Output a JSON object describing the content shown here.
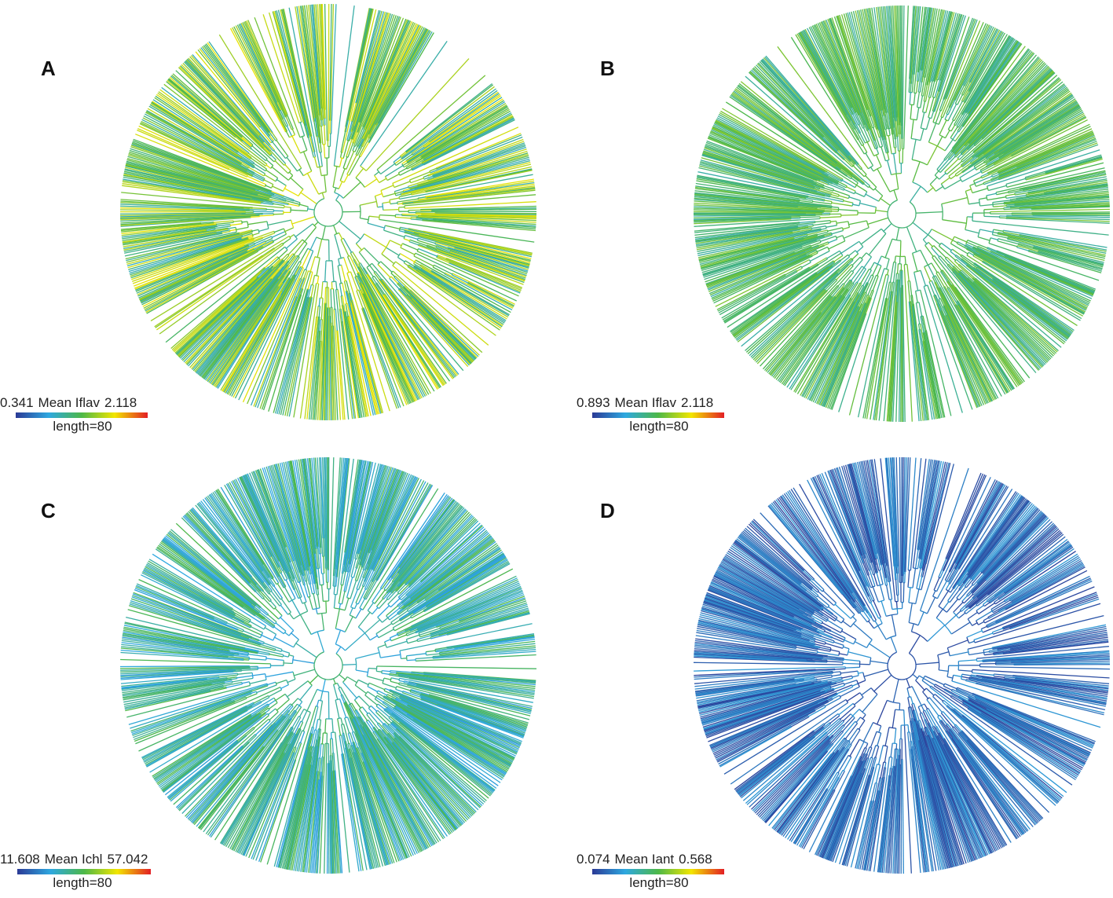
{
  "colors": {
    "scale": [
      "#2b3a96",
      "#2ea8e0",
      "#4db848",
      "#f2e600",
      "#e31e24"
    ],
    "background": "#ffffff"
  },
  "panels": [
    {
      "id": "A",
      "label": "A",
      "legend": {
        "min": "0.341",
        "title": "Mean Iflav",
        "max": "2.118",
        "length": "length=80"
      },
      "dominant": 0.52,
      "spread": 0.22
    },
    {
      "id": "B",
      "label": "B",
      "legend": {
        "min": "0.893",
        "title": "Mean Iflav",
        "max": "2.118",
        "length": "length=80"
      },
      "dominant": 0.46,
      "spread": 0.12
    },
    {
      "id": "C",
      "label": "C",
      "legend": {
        "min": "11.608",
        "title": "Mean Ichl",
        "max": "57.042",
        "length": "length=80"
      },
      "dominant": 0.36,
      "spread": 0.14
    },
    {
      "id": "D",
      "label": "D",
      "legend": {
        "min": "0.074",
        "title": "Mean Iant",
        "max": "0.568",
        "length": "length=80"
      },
      "dominant": 0.12,
      "spread": 0.1
    }
  ]
}
